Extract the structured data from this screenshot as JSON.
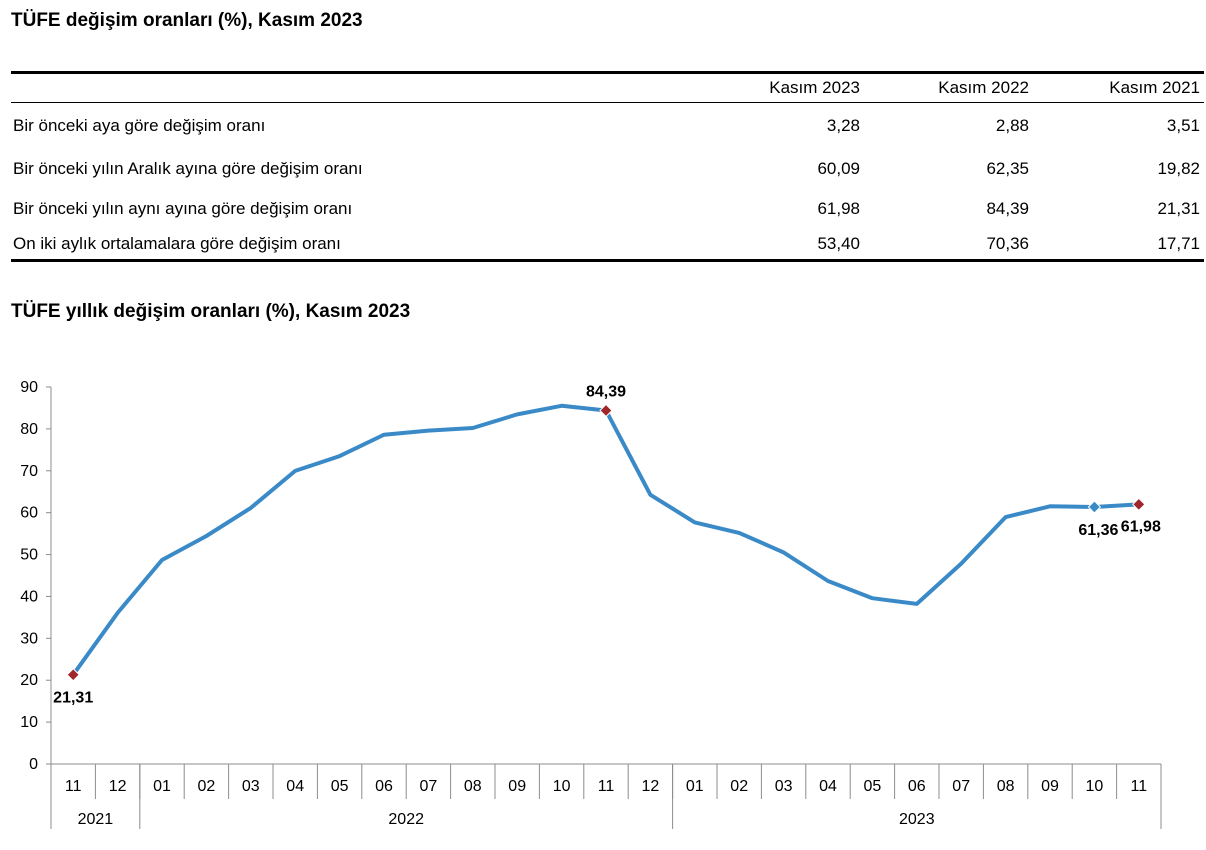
{
  "table_section": {
    "title": "TÜFE değişim oranları (%), Kasım 2023",
    "columns": [
      "Kasım 2023",
      "Kasım 2022",
      "Kasım 2021"
    ],
    "rows": [
      {
        "label": "Bir önceki aya göre değişim oranı",
        "values": [
          "3,28",
          "2,88",
          "3,51"
        ]
      },
      {
        "label": "Bir önceki yılın Aralık ayına göre değişim oranı",
        "values": [
          "60,09",
          "62,35",
          "19,82"
        ]
      },
      {
        "label": "Bir önceki yılın aynı ayına göre değişim oranı",
        "values": [
          "61,98",
          "84,39",
          "21,31"
        ]
      },
      {
        "label": "On iki aylık ortalamalara göre değişim oranı",
        "values": [
          "53,40",
          "70,36",
          "17,71"
        ]
      }
    ]
  },
  "chart_section": {
    "title": "TÜFE yıllık değişim oranları (%), Kasım 2023"
  },
  "chart_data": {
    "type": "line",
    "title": "TÜFE yıllık değişim oranları (%), Kasım 2023",
    "xlabel": "",
    "ylabel": "",
    "ylim": [
      0,
      90
    ],
    "yticks": [
      0,
      10,
      20,
      30,
      40,
      50,
      60,
      70,
      80,
      90
    ],
    "grid": false,
    "legend": "none",
    "categories": [
      "11",
      "12",
      "01",
      "02",
      "03",
      "04",
      "05",
      "06",
      "07",
      "08",
      "09",
      "10",
      "11",
      "12",
      "01",
      "02",
      "03",
      "04",
      "05",
      "06",
      "07",
      "08",
      "09",
      "10",
      "11"
    ],
    "year_groups": [
      {
        "label": "2021",
        "count": 2
      },
      {
        "label": "2022",
        "count": 12
      },
      {
        "label": "2023",
        "count": 11
      }
    ],
    "series": [
      {
        "color": "#3a8ac8",
        "values": [
          21.31,
          36.08,
          48.69,
          54.44,
          61.14,
          69.97,
          73.5,
          78.62,
          79.6,
          80.21,
          83.45,
          85.51,
          84.39,
          64.27,
          57.68,
          55.18,
          50.51,
          43.68,
          39.59,
          38.21,
          47.83,
          58.94,
          61.53,
          61.36,
          61.98
        ]
      }
    ],
    "annotations": [
      {
        "index": 0,
        "text": "21,31",
        "marker_color": "#a0262b",
        "position": "below"
      },
      {
        "index": 12,
        "text": "84,39",
        "marker_color": "#a0262b",
        "position": "above"
      },
      {
        "index": 23,
        "text": "61,36",
        "marker_color": "#3a8ac8",
        "position": "below-left"
      },
      {
        "index": 24,
        "text": "61,98",
        "marker_color": "#a0262b",
        "position": "below-right"
      }
    ]
  }
}
